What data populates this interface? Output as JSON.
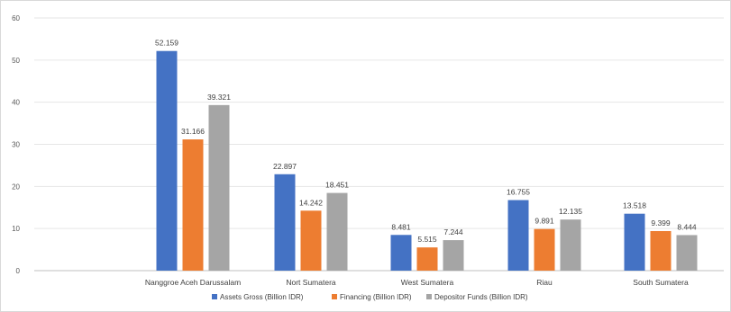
{
  "chart_data": {
    "type": "bar",
    "title": "",
    "xlabel": "",
    "ylabel": "",
    "ylim": [
      0,
      60
    ],
    "yticks": [
      0,
      10,
      20,
      30,
      40,
      50,
      60
    ],
    "grid": true,
    "legend_position": "bottom",
    "categories": [
      "Nanggroe Aceh Darussalam",
      "Nort Sumatera",
      "West Sumatera",
      "Riau",
      "South Sumatera"
    ],
    "series": [
      {
        "name": "Assets Gross (Billion IDR)",
        "color": "#4472C4",
        "values": [
          52.159,
          22.897,
          8.481,
          16.755,
          13.518
        ],
        "labels": [
          "52.159",
          "22.897",
          "8.481",
          "16.755",
          "13.518"
        ]
      },
      {
        "name": "Financing (Billion IDR)",
        "color": "#ED7D31",
        "values": [
          31.166,
          14.242,
          5.515,
          9.891,
          9.399
        ],
        "labels": [
          "31.166",
          "14.242",
          "5.515",
          "9.891",
          "9.399"
        ]
      },
      {
        "name": "Depositor Funds (Billion IDR)",
        "color": "#A5A5A5",
        "values": [
          39.321,
          18.451,
          7.244,
          12.135,
          8.444
        ],
        "labels": [
          "39.321",
          "18.451",
          "7.244",
          "12.135",
          "8.444"
        ]
      }
    ]
  }
}
